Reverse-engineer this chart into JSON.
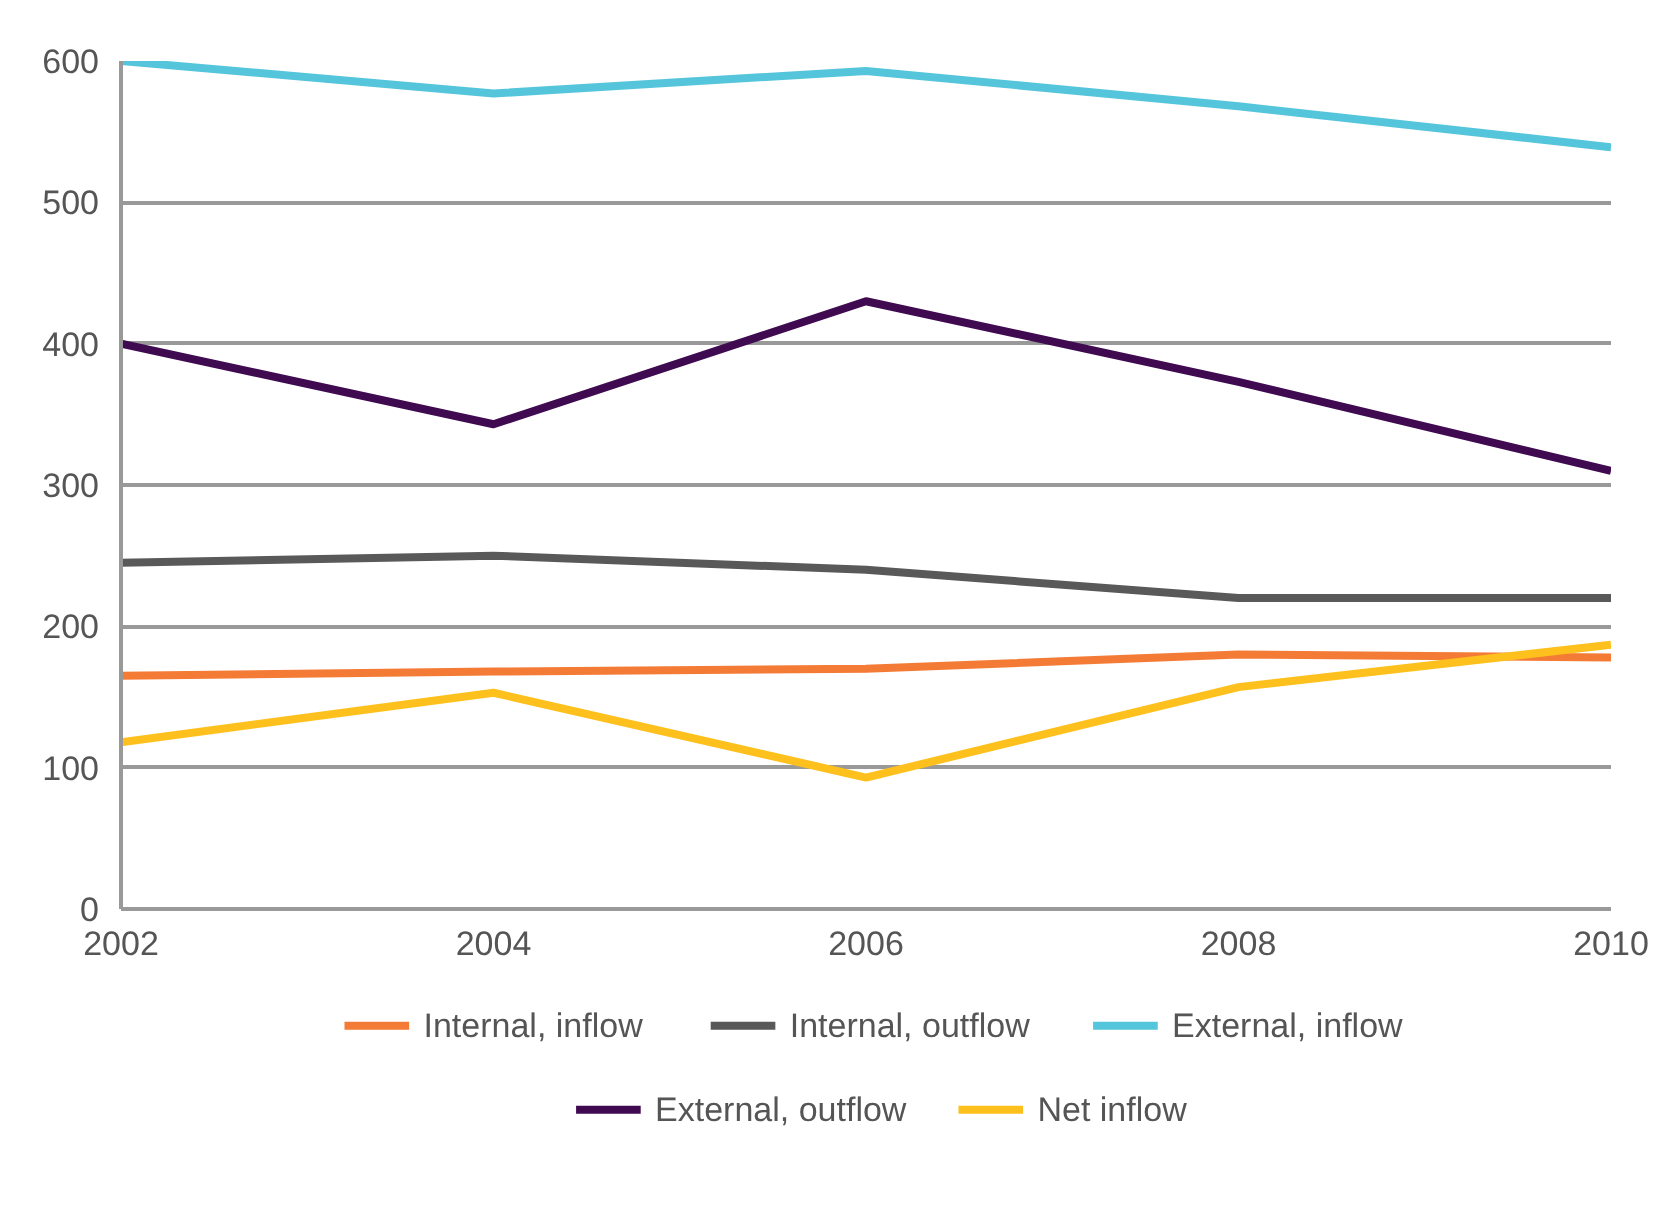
{
  "chart_data": {
    "type": "line",
    "categories": [
      "2002",
      "2004",
      "2006",
      "2008",
      "2010"
    ],
    "ylim": [
      0,
      600
    ],
    "yticks": [
      0,
      100,
      200,
      300,
      400,
      500,
      600
    ],
    "grid": "y",
    "legend": "bottom",
    "line_style": "solid",
    "marker": "none",
    "series": [
      {
        "name": "Internal, inflow",
        "color": "#f47b36",
        "values": [
          165,
          168,
          170,
          180,
          178
        ]
      },
      {
        "name": "Internal, outflow",
        "color": "#595959",
        "values": [
          245,
          250,
          240,
          220,
          220
        ]
      },
      {
        "name": "External, inflow",
        "color": "#55c5dc",
        "values": [
          600,
          577,
          593,
          568,
          539
        ]
      },
      {
        "name": "External, outflow",
        "color": "#3f0a50",
        "values": [
          400,
          343,
          430,
          373,
          310
        ]
      },
      {
        "name": "Net inflow",
        "color": "#fdc01c",
        "values": [
          118,
          153,
          93,
          157,
          187
        ]
      }
    ]
  }
}
